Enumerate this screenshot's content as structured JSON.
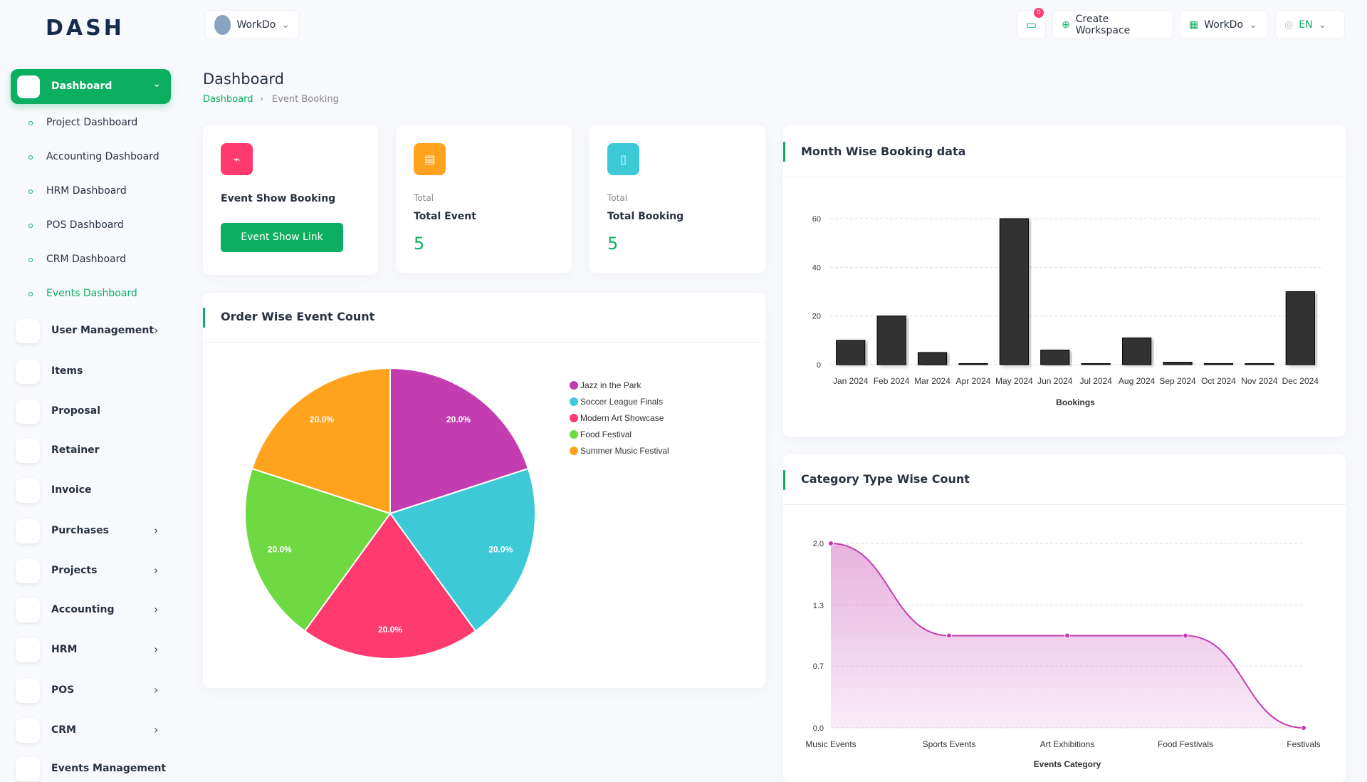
{
  "logo": "DASH",
  "topbar": {
    "workspace": "WorkDo",
    "notifications": 0,
    "create_workspace": "Create Workspace",
    "workspace_menu": "WorkDo",
    "language": "EN"
  },
  "sidebar": {
    "active": "Dashboard",
    "submenu": [
      "Project Dashboard",
      "Accounting Dashboard",
      "HRM Dashboard",
      "POS Dashboard",
      "CRM Dashboard",
      "Events Dashboard"
    ],
    "submenu_active": 5,
    "menu": [
      {
        "label": "User Management",
        "expandable": true
      },
      {
        "label": "Items",
        "expandable": false
      },
      {
        "label": "Proposal",
        "expandable": false
      },
      {
        "label": "Retainer",
        "expandable": false
      },
      {
        "label": "Invoice",
        "expandable": false
      },
      {
        "label": "Purchases",
        "expandable": true
      },
      {
        "label": "Projects",
        "expandable": true
      },
      {
        "label": "Accounting",
        "expandable": true
      },
      {
        "label": "HRM",
        "expandable": true
      },
      {
        "label": "POS",
        "expandable": true
      },
      {
        "label": "CRM",
        "expandable": true
      },
      {
        "label": "Events Management",
        "expandable": true
      }
    ]
  },
  "page": {
    "title": "Dashboard",
    "breadcrumb": [
      "Dashboard",
      "Event Booking"
    ]
  },
  "cards": [
    {
      "title": "Event Show Booking",
      "button": "Event Show Link",
      "color": "#ff3a6e"
    },
    {
      "caption": "Total",
      "title": "Total Event",
      "value": 5,
      "color": "#ffa21d"
    },
    {
      "caption": "Total",
      "title": "Total Booking",
      "value": 5,
      "color": "#3ec9d6"
    }
  ],
  "chart_data": [
    {
      "type": "pie",
      "title": "Order Wise Event Count",
      "categories": [
        "Jazz in the Park",
        "Soccer League Finals",
        "Modern Art Showcase",
        "Food Festival",
        "Summer Music Festival"
      ],
      "values": [
        20,
        20,
        20,
        20,
        20
      ],
      "value_labels": [
        "20.0%",
        "20.0%",
        "20.0%",
        "20.0%",
        "20.0%"
      ],
      "colors": [
        "#c33db0",
        "#3ec9d6",
        "#ff3a6e",
        "#6fd943",
        "#ffa21d"
      ]
    },
    {
      "type": "bar",
      "title": "Month Wise Booking data",
      "x_label": "Bookings",
      "categories": [
        "Jan 2024",
        "Feb 2024",
        "Mar 2024",
        "Apr 2024",
        "May 2024",
        "Jun 2024",
        "Jul 2024",
        "Aug 2024",
        "Sep 2024",
        "Oct 2024",
        "Nov 2024",
        "Dec 2024"
      ],
      "values": [
        10,
        20,
        5,
        0,
        60,
        6,
        0,
        11,
        1,
        0,
        0,
        30
      ],
      "color": "#333333",
      "ylim": [
        0,
        60
      ],
      "yticks": [
        0,
        20,
        40,
        60
      ],
      "grid": true
    },
    {
      "type": "area",
      "title": "Category Type Wise Count",
      "x_label": "Events Category",
      "categories": [
        "Music Events",
        "Sports Events",
        "Art Exhibitions",
        "Food Festivals",
        "Festivals"
      ],
      "values": [
        2,
        1,
        1,
        1,
        0
      ],
      "color": "#c33db0",
      "ylim": [
        0,
        2
      ],
      "yticks": [
        {
          "value": 0,
          "label": "0.0"
        },
        {
          "value": 0.67,
          "label": "0.7"
        },
        {
          "value": 1.33,
          "label": "1.3"
        },
        {
          "value": 2,
          "label": "2.0"
        }
      ],
      "grid": true
    }
  ]
}
